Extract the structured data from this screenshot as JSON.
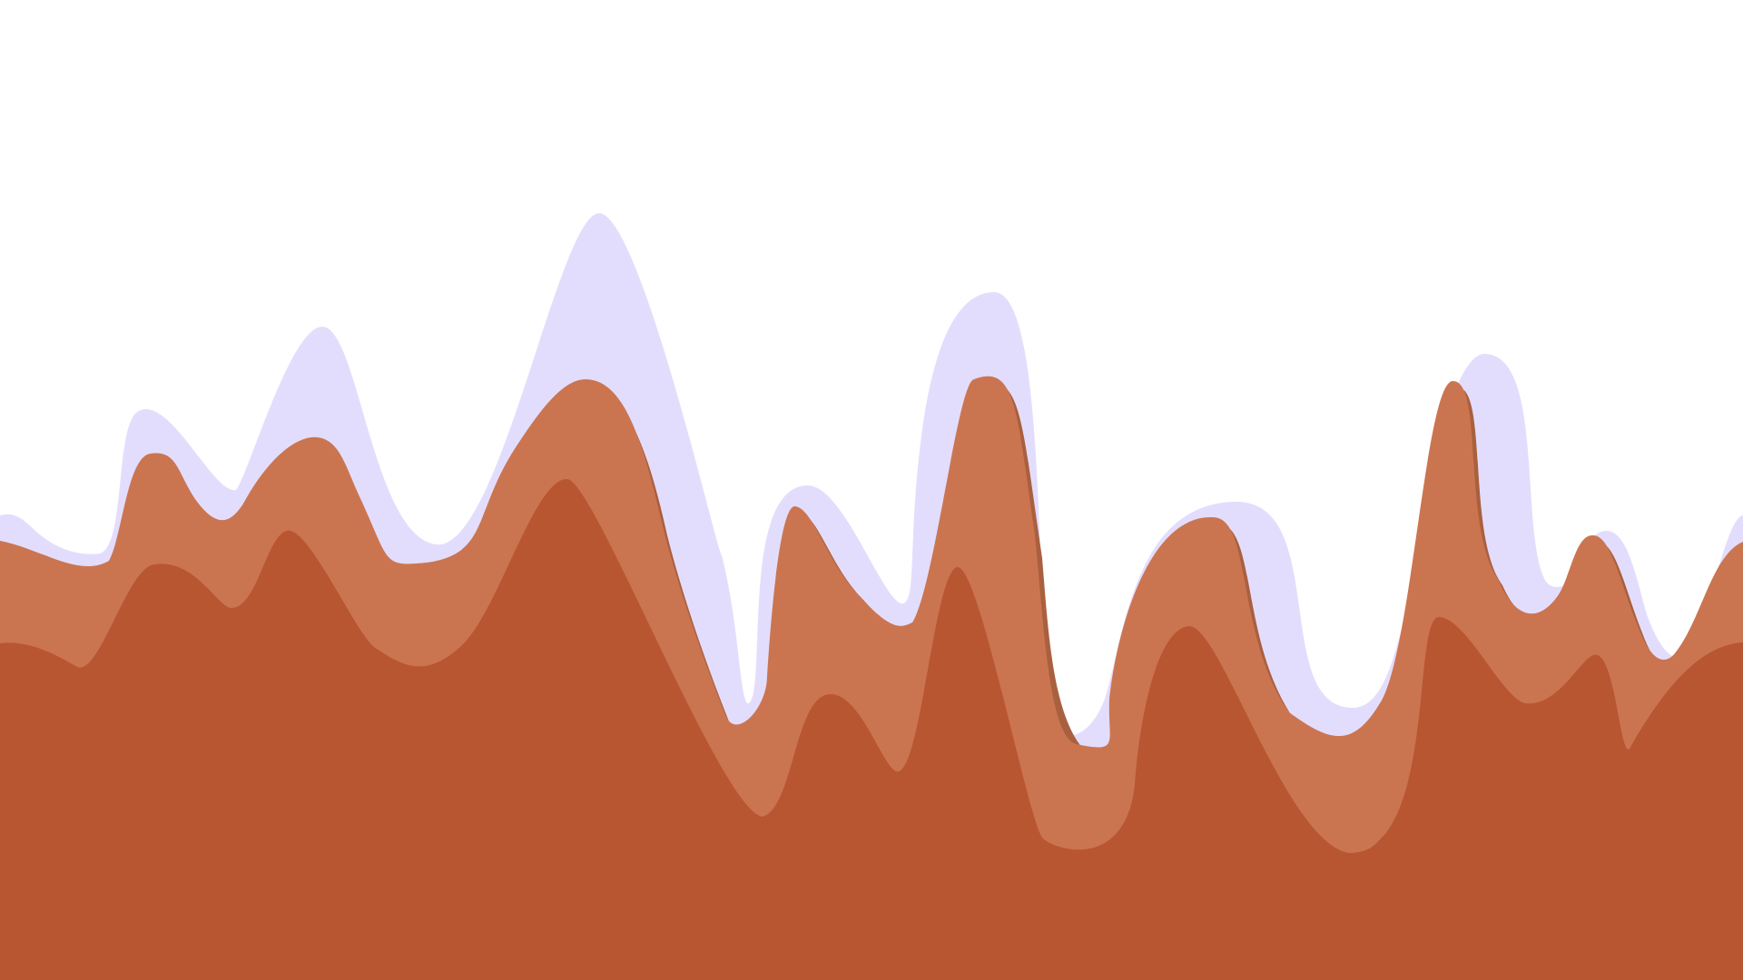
{
  "colors": {
    "background": "#ffffff",
    "lavender": "#e3ddfd",
    "terracotta": "#cb7550",
    "terracotta_shadow": "#a9603f",
    "rust": "#b85632"
  },
  "layers": [
    {
      "name": "lavender-wave",
      "color": "#e3ddfd"
    },
    {
      "name": "terracotta-wave-shadow",
      "color": "#a9603f"
    },
    {
      "name": "terracotta-wave",
      "color": "#cb7550"
    },
    {
      "name": "rust-wave",
      "color": "#b85632"
    }
  ]
}
